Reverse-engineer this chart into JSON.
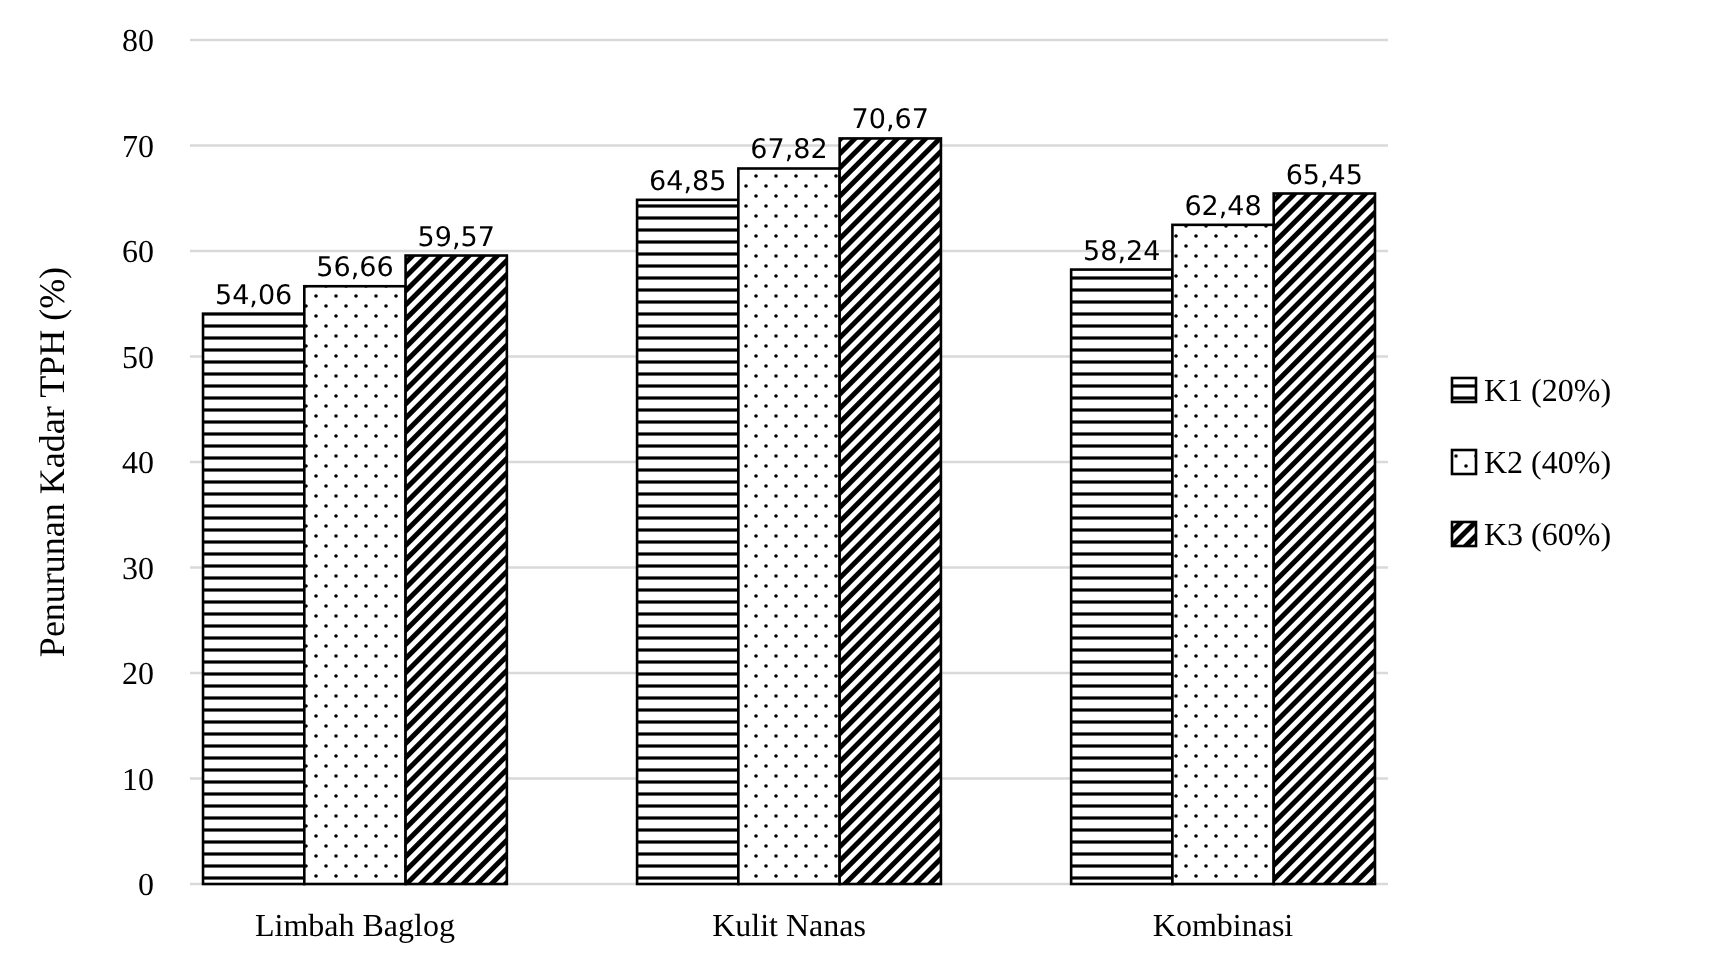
{
  "chart_data": {
    "type": "bar",
    "ylabel": "Penurunan Kadar TPH (%)",
    "categories": [
      "Limbah Baglog",
      "Kulit Nanas",
      "Kombinasi"
    ],
    "series": [
      {
        "name": "K1 (20%)",
        "color": "#000000",
        "values": [
          54.06,
          64.85,
          58.24
        ],
        "value_labels": [
          "54,06",
          "64,85",
          "58,24"
        ]
      },
      {
        "name": "K2 (40%)",
        "color": "#000000",
        "values": [
          56.66,
          67.82,
          62.48
        ],
        "value_labels": [
          "56,66",
          "67,82",
          "62,48"
        ]
      },
      {
        "name": "K3 (60%)",
        "color": "#000000",
        "values": [
          59.57,
          70.67,
          65.45
        ],
        "value_labels": [
          "59,57",
          "70,67",
          "65,45"
        ]
      }
    ],
    "ylim": [
      0,
      80
    ],
    "yticks": [
      0,
      10,
      20,
      30,
      40,
      50,
      60,
      70,
      80
    ],
    "grid": "y",
    "legend": "right"
  }
}
